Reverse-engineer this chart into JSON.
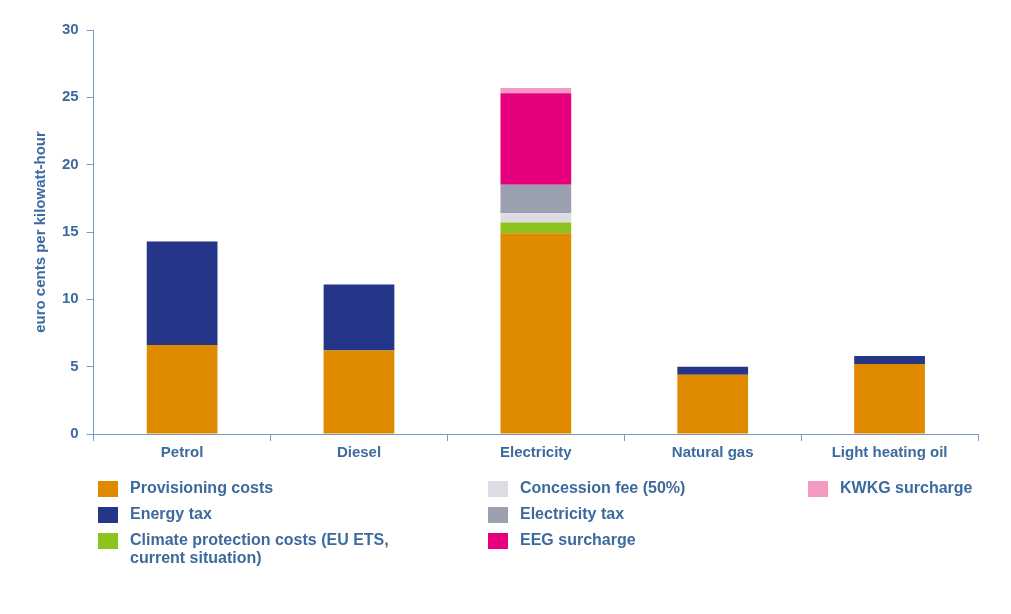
{
  "chart_data": {
    "type": "bar",
    "stacked": true,
    "ylabel": "euro cents per kilowatt-hour",
    "categories": [
      "Petrol",
      "Diesel",
      "Electricity",
      "Natural gas",
      "Light heating oil"
    ],
    "ylim": [
      0,
      30
    ],
    "yticks": [
      0,
      5,
      10,
      15,
      20,
      25,
      30
    ],
    "grid": false,
    "legend": "bottom",
    "series": [
      {
        "name": "Provisioning costs",
        "color": "#e08a00",
        "values": [
          6.6,
          6.2,
          14.9,
          4.4,
          5.2
        ]
      },
      {
        "name": "Energy tax",
        "color": "#253588",
        "values": [
          7.7,
          4.9,
          null,
          0.6,
          0.6
        ]
      },
      {
        "name": "Climate protection costs (EU ETS, current situation)",
        "color": "#8dc21f",
        "values": [
          null,
          null,
          0.8,
          null,
          null
        ]
      },
      {
        "name": "Concession fee (50%)",
        "color": "#dcdde3",
        "values": [
          null,
          null,
          0.7,
          null,
          null
        ]
      },
      {
        "name": "Electricity tax",
        "color": "#9aa0ad",
        "values": [
          null,
          null,
          2.1,
          null,
          null
        ]
      },
      {
        "name": "EEG surcharge",
        "color": "#e6007e",
        "values": [
          null,
          null,
          6.8,
          null,
          null
        ]
      },
      {
        "name": "KWKG surcharge",
        "color": "#f29ac0",
        "values": [
          null,
          null,
          0.4,
          null,
          null
        ]
      }
    ]
  }
}
